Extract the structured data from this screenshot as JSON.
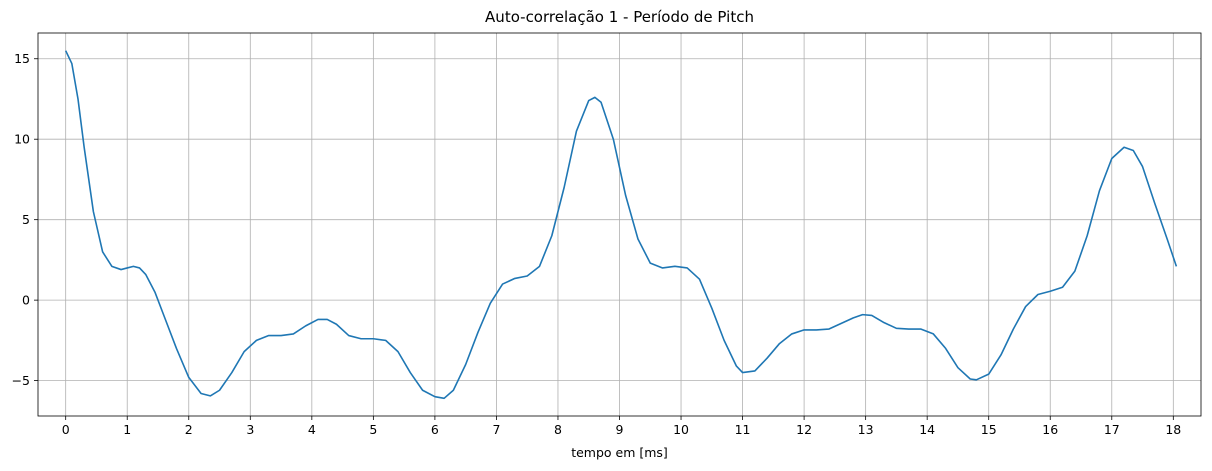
{
  "chart_data": {
    "type": "line",
    "title": "Auto-correlação 1 - Período de Pitch",
    "xlabel": "tempo em [ms]",
    "ylabel": "",
    "xlim": [
      -0.45,
      18.45
    ],
    "ylim": [
      -7.2,
      16.6
    ],
    "xticks": [
      0,
      1,
      2,
      3,
      4,
      5,
      6,
      7,
      8,
      9,
      10,
      11,
      12,
      13,
      14,
      15,
      16,
      17,
      18
    ],
    "yticks": [
      -5,
      0,
      5,
      10,
      15
    ],
    "grid": true,
    "series": [
      {
        "color": "#1f77b4",
        "x": [
          0,
          0.1,
          0.2,
          0.3,
          0.45,
          0.6,
          0.75,
          0.9,
          1.0,
          1.1,
          1.2,
          1.3,
          1.45,
          1.6,
          1.8,
          2.0,
          2.2,
          2.35,
          2.5,
          2.7,
          2.9,
          3.1,
          3.3,
          3.5,
          3.7,
          3.9,
          4.1,
          4.25,
          4.4,
          4.6,
          4.8,
          5.0,
          5.2,
          5.4,
          5.6,
          5.8,
          6.0,
          6.15,
          6.3,
          6.5,
          6.7,
          6.9,
          7.1,
          7.3,
          7.5,
          7.7,
          7.9,
          8.1,
          8.3,
          8.5,
          8.6,
          8.7,
          8.9,
          9.1,
          9.3,
          9.5,
          9.7,
          9.9,
          10.1,
          10.3,
          10.5,
          10.7,
          10.9,
          11.0,
          11.2,
          11.4,
          11.6,
          11.8,
          12.0,
          12.2,
          12.4,
          12.6,
          12.8,
          12.95,
          13.1,
          13.3,
          13.5,
          13.7,
          13.9,
          14.1,
          14.3,
          14.5,
          14.7,
          14.8,
          15.0,
          15.2,
          15.4,
          15.6,
          15.8,
          16.0,
          16.2,
          16.4,
          16.6,
          16.8,
          17.0,
          17.2,
          17.35,
          17.5,
          17.7,
          17.9,
          18.05
        ],
        "y": [
          15.5,
          14.7,
          12.5,
          9.5,
          5.5,
          3.0,
          2.1,
          1.9,
          2.0,
          2.1,
          2.0,
          1.6,
          0.5,
          -1.0,
          -3.0,
          -4.8,
          -5.8,
          -5.95,
          -5.6,
          -4.5,
          -3.2,
          -2.5,
          -2.2,
          -2.2,
          -2.1,
          -1.6,
          -1.2,
          -1.2,
          -1.5,
          -2.2,
          -2.4,
          -2.4,
          -2.5,
          -3.2,
          -4.5,
          -5.6,
          -6.0,
          -6.1,
          -5.6,
          -4.0,
          -2.0,
          -0.2,
          1.0,
          1.35,
          1.5,
          2.1,
          4.0,
          7.0,
          10.5,
          12.4,
          12.6,
          12.3,
          10.0,
          6.5,
          3.8,
          2.3,
          2.0,
          2.1,
          2.0,
          1.3,
          -0.5,
          -2.5,
          -4.1,
          -4.5,
          -4.4,
          -3.6,
          -2.7,
          -2.1,
          -1.85,
          -1.85,
          -1.8,
          -1.45,
          -1.1,
          -0.9,
          -0.95,
          -1.4,
          -1.75,
          -1.8,
          -1.8,
          -2.1,
          -3.0,
          -4.2,
          -4.9,
          -4.95,
          -4.6,
          -3.4,
          -1.8,
          -0.4,
          0.35,
          0.55,
          0.8,
          1.8,
          4.0,
          6.8,
          8.8,
          9.5,
          9.3,
          8.3,
          6.0,
          3.8,
          2.1
        ]
      }
    ]
  }
}
